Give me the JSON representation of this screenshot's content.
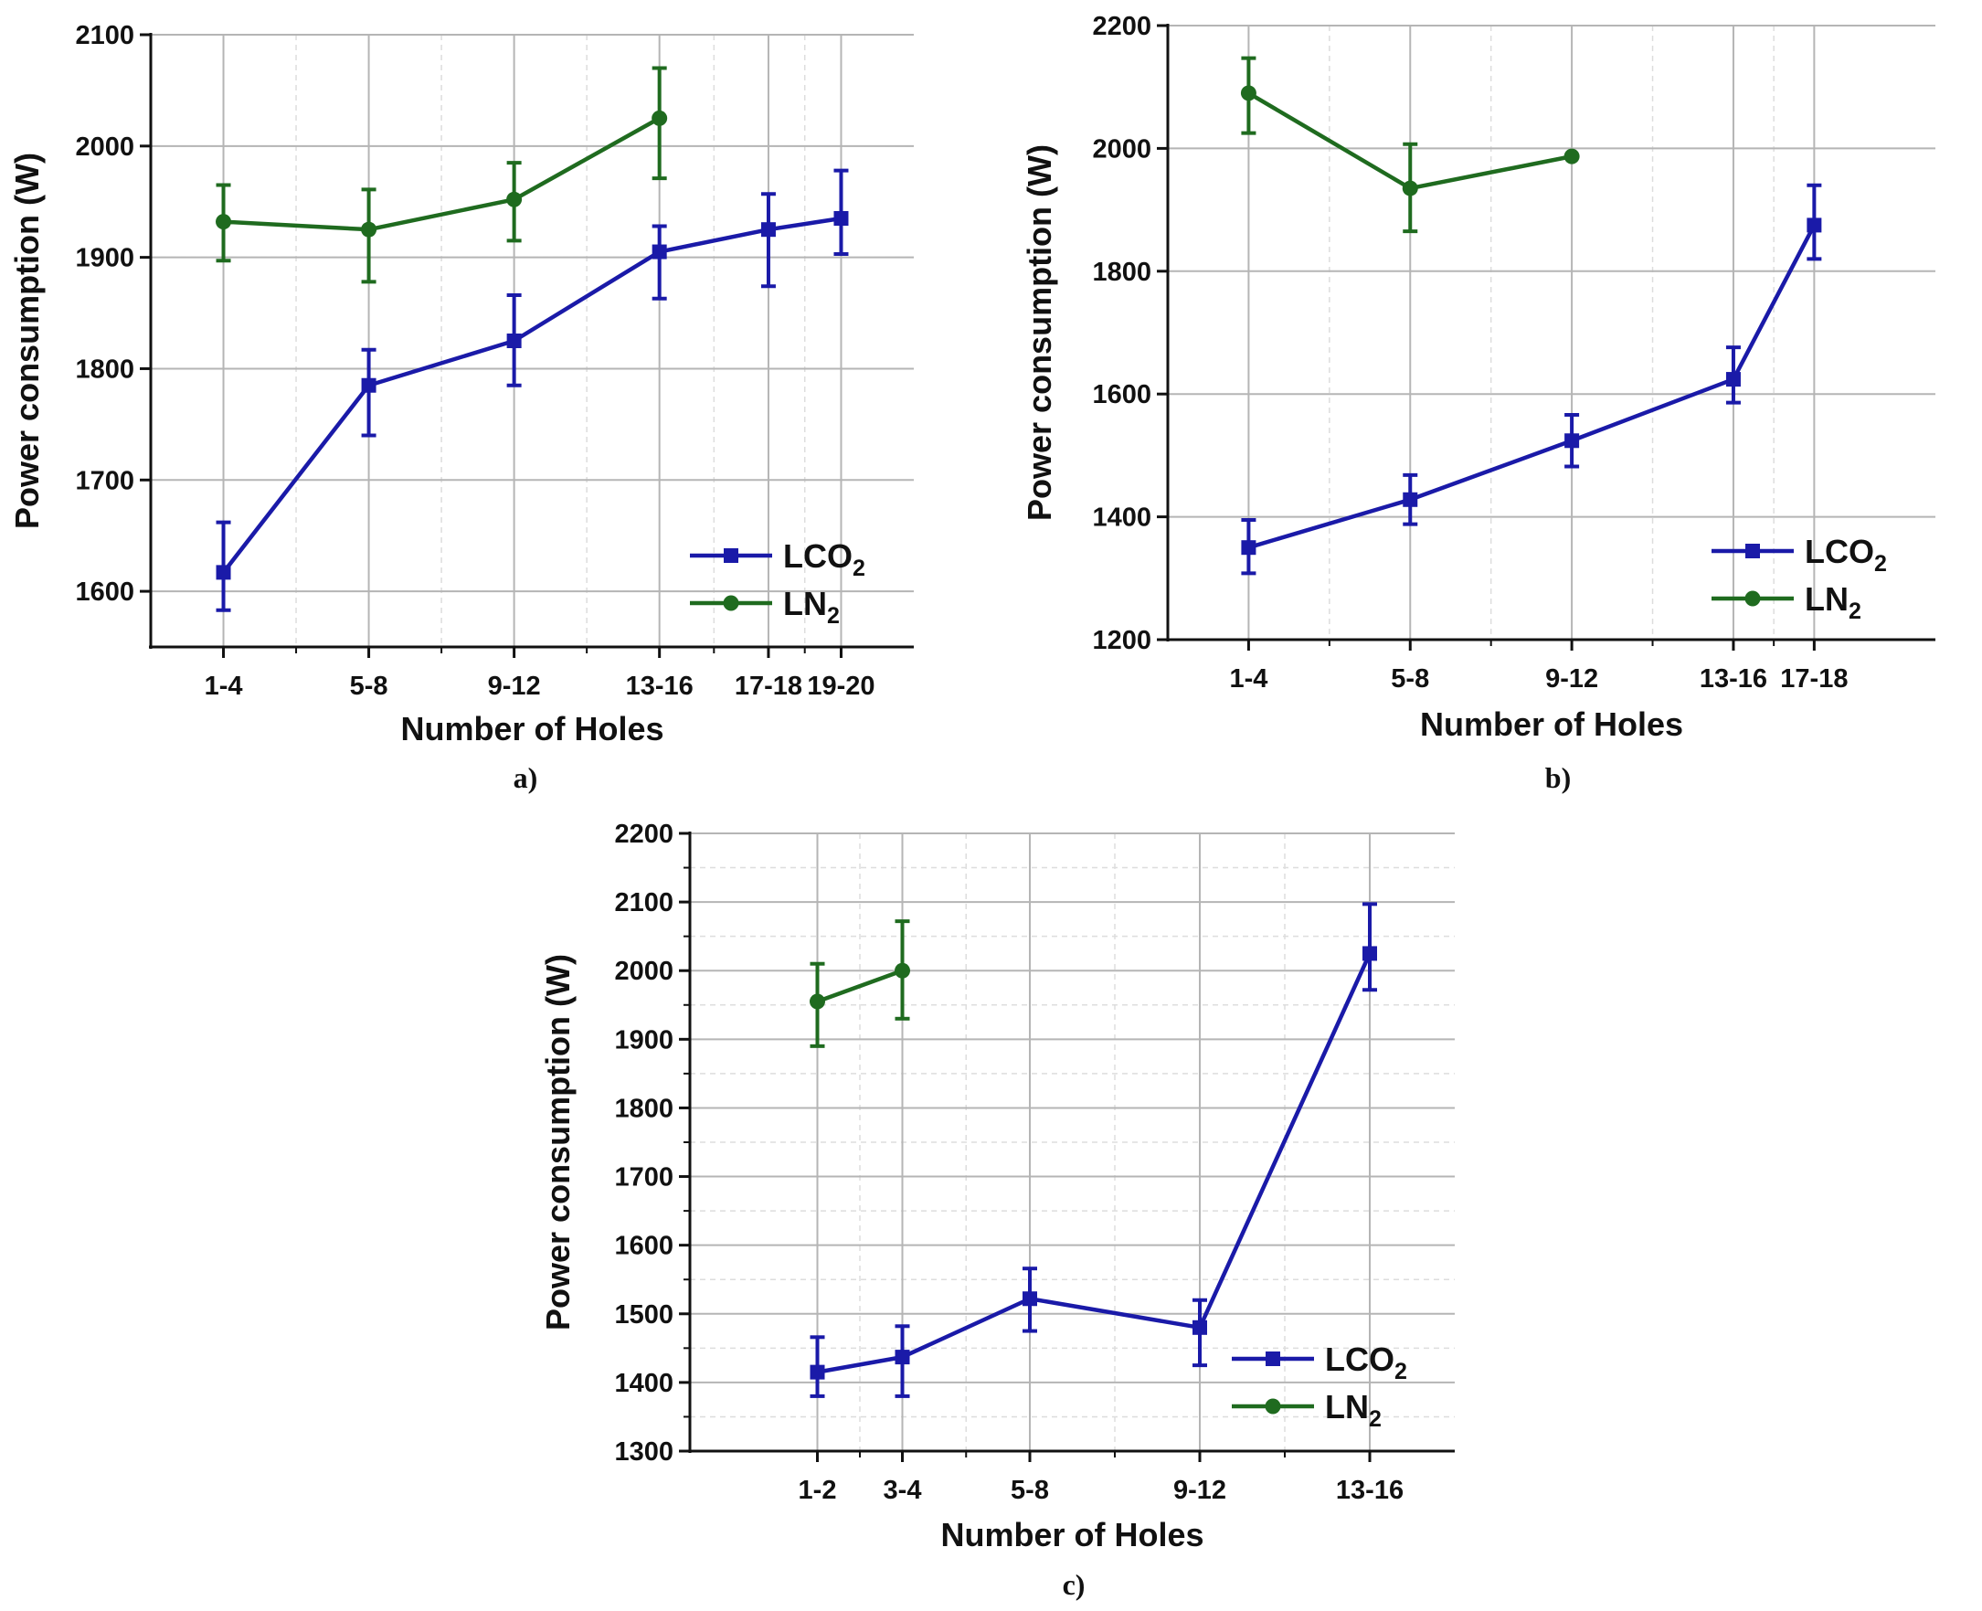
{
  "colors": {
    "lco2": "#1a1aa8",
    "ln2": "#1f6b1f",
    "grid_major": "#b5b5b5",
    "grid_minor": "#dddddd",
    "axis": "#111111"
  },
  "chart_data": [
    {
      "type": "line",
      "panel_label": "a)",
      "xlabel": "Number of Holes",
      "ylabel": "Power consumption (W)",
      "categories": [
        "1-4",
        "5-8",
        "9-12",
        "13-16",
        "17-18",
        "19-20"
      ],
      "x_positions": [
        2.5,
        6.5,
        10.5,
        14.5,
        17.5,
        19.5
      ],
      "xlim": [
        0.5,
        21.5
      ],
      "ylim": [
        1550,
        2100
      ],
      "yticks": [
        1600,
        1700,
        1800,
        1900,
        2000,
        2100
      ],
      "grid": true,
      "legend": "bottom-right",
      "series": [
        {
          "name": "LCO2",
          "label_main": "LCO",
          "label_sub": "2",
          "marker": "square",
          "values": [
            1617,
            1785,
            1825,
            1905,
            1925,
            1935
          ],
          "err_low": [
            1583,
            1740,
            1785,
            1863,
            1874,
            1903
          ],
          "err_high": [
            1662,
            1817,
            1866,
            1928,
            1957,
            1978
          ]
        },
        {
          "name": "LN2",
          "label_main": "LN",
          "label_sub": "2",
          "marker": "circle",
          "values": [
            1932,
            1925,
            1952,
            2025,
            null,
            null
          ],
          "err_low": [
            1897,
            1878,
            1915,
            1971,
            null,
            null
          ],
          "err_high": [
            1965,
            1961,
            1985,
            2070,
            null,
            null
          ]
        }
      ]
    },
    {
      "type": "line",
      "panel_label": "b)",
      "xlabel": "Number of Holes",
      "ylabel": "Power consumption (W)",
      "categories": [
        "1-4",
        "5-8",
        "9-12",
        "13-16",
        "17-18"
      ],
      "x_positions": [
        2.5,
        6.5,
        10.5,
        14.5,
        16.5
      ],
      "xlim": [
        0.5,
        19.5
      ],
      "ylim": [
        1200,
        2200
      ],
      "yticks": [
        1200,
        1400,
        1600,
        1800,
        2000,
        2200
      ],
      "grid": true,
      "legend": "bottom-right",
      "series": [
        {
          "name": "LCO2",
          "label_main": "LCO",
          "label_sub": "2",
          "marker": "square",
          "values": [
            1350,
            1428,
            1524,
            1624,
            1875
          ],
          "err_low": [
            1308,
            1388,
            1482,
            1586,
            1820
          ],
          "err_high": [
            1395,
            1468,
            1566,
            1676,
            1940
          ]
        },
        {
          "name": "LN2",
          "label_main": "LN",
          "label_sub": "2",
          "marker": "circle",
          "values": [
            2090,
            1935,
            1987,
            null,
            null
          ],
          "err_low": [
            2025,
            1865,
            null,
            null,
            null
          ],
          "err_high": [
            2147,
            2007,
            null,
            null,
            null
          ]
        }
      ]
    },
    {
      "type": "line",
      "panel_label": "c)",
      "xlabel": "Number of Holes",
      "ylabel": "Power consumption (W)",
      "categories": [
        "1-2",
        "3-4",
        "5-8",
        "9-12",
        "13-16"
      ],
      "x_positions": [
        1.5,
        3.5,
        6.5,
        10.5,
        14.5
      ],
      "xlim": [
        -1.5,
        16.5
      ],
      "ylim": [
        1300,
        2200
      ],
      "yticks": [
        1300,
        1400,
        1500,
        1600,
        1700,
        1800,
        1900,
        2000,
        2100,
        2200
      ],
      "grid": true,
      "legend": "bottom-right",
      "series": [
        {
          "name": "LCO2",
          "label_main": "LCO",
          "label_sub": "2",
          "marker": "square",
          "values": [
            1415,
            1437,
            1522,
            1480,
            2025
          ],
          "err_low": [
            1380,
            1380,
            1475,
            1425,
            1972
          ],
          "err_high": [
            1466,
            1482,
            1566,
            1520,
            2097
          ]
        },
        {
          "name": "LN2",
          "label_main": "LN",
          "label_sub": "2",
          "marker": "circle",
          "values": [
            1955,
            2000,
            null,
            null,
            null
          ],
          "err_low": [
            1890,
            1930,
            null,
            null,
            null
          ],
          "err_high": [
            2010,
            2072,
            null,
            null,
            null
          ]
        }
      ]
    }
  ]
}
